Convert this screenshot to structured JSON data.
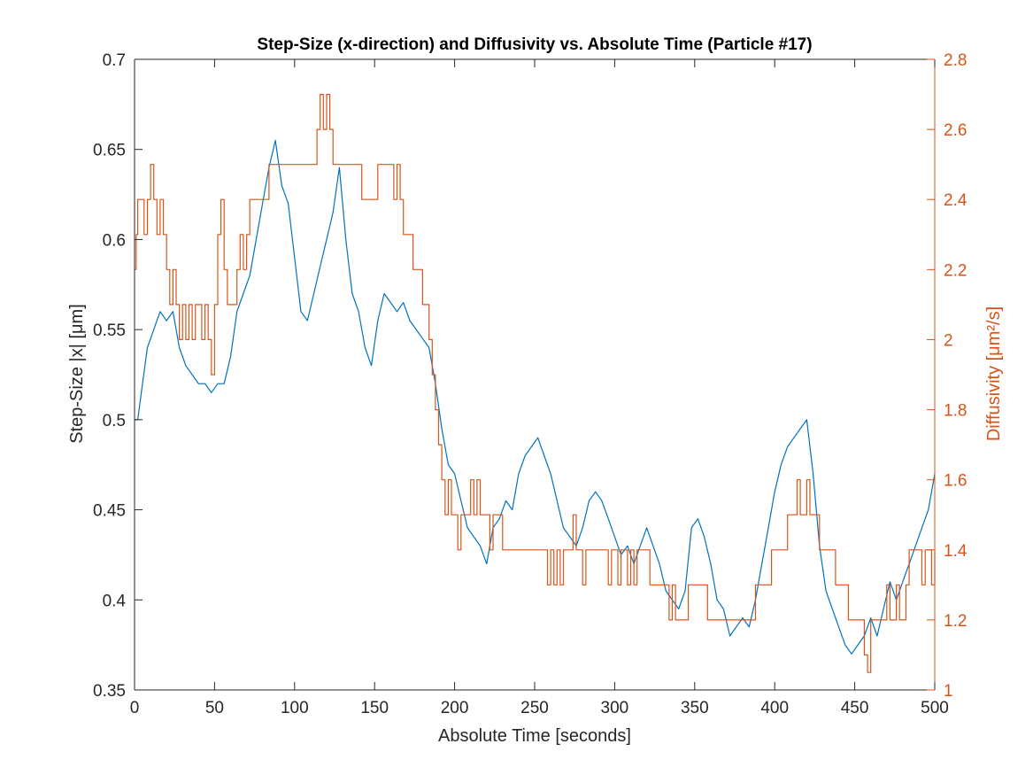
{
  "chart_data": {
    "type": "line",
    "title": "Step-Size (x-direction) and Diffusivity vs. Absolute Time (Particle #17)",
    "xlabel": "Absolute Time [seconds]",
    "xlim": [
      0,
      500
    ],
    "xticks": [
      "0",
      "50",
      "100",
      "150",
      "200",
      "250",
      "300",
      "350",
      "400",
      "450",
      "500"
    ],
    "ylabel_left": "Step-Size |x| [μm]",
    "ylim_left": [
      0.35,
      0.7
    ],
    "yticks_left": [
      "0.35",
      "0.4",
      "0.45",
      "0.5",
      "0.55",
      "0.6",
      "0.65",
      "0.7"
    ],
    "ylabel_right": "Diffusivity [μm²/s]",
    "ylim_right": [
      1,
      2.8
    ],
    "yticks_right": [
      "1",
      "1.2",
      "1.4",
      "1.6",
      "1.8",
      "2",
      "2.2",
      "2.4",
      "2.6",
      "2.8"
    ],
    "grid": false,
    "legend": "none",
    "colors": {
      "series_left": "#0072BD",
      "series_right": "#D95319",
      "axes": "#262626"
    },
    "series": [
      {
        "axis": "left",
        "x": [
          0,
          2,
          5,
          8,
          12,
          16,
          20,
          24,
          28,
          32,
          36,
          40,
          44,
          48,
          52,
          56,
          60,
          64,
          68,
          72,
          76,
          80,
          84,
          88,
          92,
          96,
          100,
          104,
          108,
          112,
          116,
          120,
          124,
          128,
          132,
          136,
          140,
          144,
          148,
          152,
          156,
          160,
          164,
          168,
          172,
          176,
          180,
          184,
          188,
          192,
          196,
          200,
          204,
          208,
          212,
          216,
          220,
          224,
          228,
          232,
          236,
          240,
          244,
          248,
          252,
          256,
          260,
          264,
          268,
          272,
          276,
          280,
          284,
          288,
          292,
          296,
          300,
          304,
          308,
          312,
          316,
          320,
          324,
          328,
          332,
          336,
          340,
          344,
          348,
          352,
          356,
          360,
          364,
          368,
          372,
          376,
          380,
          384,
          388,
          392,
          396,
          400,
          404,
          408,
          412,
          416,
          420,
          424,
          428,
          432,
          436,
          440,
          444,
          448,
          452,
          456,
          460,
          464,
          468,
          472,
          476,
          480,
          484,
          488,
          492,
          496,
          500
        ],
        "values": [
          0.5,
          0.5,
          0.52,
          0.54,
          0.55,
          0.56,
          0.555,
          0.56,
          0.54,
          0.53,
          0.525,
          0.52,
          0.52,
          0.515,
          0.52,
          0.52,
          0.535,
          0.56,
          0.57,
          0.58,
          0.6,
          0.62,
          0.64,
          0.655,
          0.63,
          0.62,
          0.59,
          0.56,
          0.555,
          0.57,
          0.585,
          0.6,
          0.615,
          0.64,
          0.6,
          0.57,
          0.56,
          0.54,
          0.53,
          0.555,
          0.57,
          0.565,
          0.56,
          0.565,
          0.555,
          0.55,
          0.545,
          0.54,
          0.52,
          0.495,
          0.475,
          0.47,
          0.455,
          0.44,
          0.435,
          0.43,
          0.42,
          0.44,
          0.445,
          0.455,
          0.45,
          0.47,
          0.48,
          0.485,
          0.49,
          0.48,
          0.47,
          0.455,
          0.44,
          0.435,
          0.43,
          0.44,
          0.455,
          0.46,
          0.455,
          0.445,
          0.435,
          0.425,
          0.43,
          0.42,
          0.43,
          0.44,
          0.43,
          0.42,
          0.405,
          0.4,
          0.395,
          0.405,
          0.44,
          0.445,
          0.435,
          0.42,
          0.4,
          0.395,
          0.38,
          0.385,
          0.39,
          0.385,
          0.4,
          0.42,
          0.44,
          0.46,
          0.475,
          0.485,
          0.49,
          0.495,
          0.5,
          0.47,
          0.43,
          0.405,
          0.395,
          0.385,
          0.375,
          0.37,
          0.375,
          0.38,
          0.39,
          0.38,
          0.395,
          0.41,
          0.4,
          0.41,
          0.42,
          0.43,
          0.44,
          0.45,
          0.47
        ]
      },
      {
        "axis": "right",
        "x": [
          0,
          1,
          2,
          4,
          6,
          8,
          10,
          12,
          14,
          16,
          18,
          20,
          22,
          24,
          26,
          28,
          30,
          32,
          34,
          36,
          38,
          40,
          42,
          44,
          46,
          48,
          50,
          52,
          54,
          56,
          58,
          60,
          62,
          64,
          66,
          68,
          70,
          72,
          74,
          76,
          78,
          80,
          82,
          84,
          86,
          88,
          90,
          92,
          94,
          96,
          98,
          100,
          102,
          104,
          106,
          108,
          110,
          112,
          114,
          116,
          118,
          120,
          122,
          124,
          126,
          128,
          130,
          132,
          134,
          136,
          138,
          140,
          142,
          144,
          146,
          148,
          150,
          152,
          154,
          156,
          158,
          160,
          162,
          164,
          166,
          168,
          170,
          172,
          174,
          176,
          178,
          180,
          182,
          184,
          186,
          188,
          190,
          192,
          194,
          196,
          198,
          200,
          202,
          204,
          206,
          208,
          210,
          212,
          214,
          216,
          218,
          220,
          222,
          224,
          226,
          228,
          230,
          232,
          234,
          236,
          238,
          240,
          242,
          244,
          246,
          248,
          250,
          252,
          254,
          256,
          258,
          260,
          262,
          264,
          266,
          268,
          270,
          272,
          274,
          276,
          278,
          280,
          282,
          284,
          286,
          288,
          290,
          292,
          294,
          296,
          298,
          300,
          302,
          304,
          306,
          308,
          310,
          312,
          314,
          316,
          318,
          320,
          322,
          324,
          326,
          328,
          330,
          332,
          334,
          336,
          338,
          340,
          342,
          344,
          346,
          348,
          350,
          352,
          354,
          356,
          358,
          360,
          362,
          364,
          366,
          368,
          370,
          372,
          374,
          376,
          378,
          380,
          382,
          384,
          386,
          388,
          390,
          392,
          394,
          396,
          398,
          400,
          402,
          404,
          406,
          408,
          410,
          412,
          414,
          416,
          418,
          420,
          422,
          424,
          426,
          428,
          430,
          432,
          434,
          436,
          438,
          440,
          442,
          444,
          446,
          448,
          450,
          452,
          454,
          456,
          458,
          460,
          462,
          464,
          466,
          468,
          470,
          472,
          474,
          476,
          478,
          480,
          482,
          484,
          486,
          488,
          490,
          492,
          494,
          496,
          498,
          500
        ],
        "values": [
          2.2,
          2.3,
          2.4,
          2.4,
          2.3,
          2.4,
          2.5,
          2.4,
          2.3,
          2.4,
          2.3,
          2.2,
          2.1,
          2.2,
          2.1,
          2.0,
          2.1,
          2.0,
          2.1,
          2.0,
          2.1,
          2.1,
          2.0,
          2.1,
          2.0,
          1.9,
          2.1,
          2.3,
          2.4,
          2.2,
          2.1,
          2.1,
          2.1,
          2.2,
          2.3,
          2.2,
          2.3,
          2.4,
          2.4,
          2.4,
          2.4,
          2.4,
          2.4,
          2.5,
          2.5,
          2.5,
          2.5,
          2.5,
          2.5,
          2.5,
          2.5,
          2.5,
          2.5,
          2.5,
          2.5,
          2.5,
          2.5,
          2.5,
          2.6,
          2.7,
          2.6,
          2.7,
          2.6,
          2.5,
          2.5,
          2.5,
          2.5,
          2.5,
          2.5,
          2.5,
          2.5,
          2.5,
          2.4,
          2.4,
          2.4,
          2.4,
          2.4,
          2.5,
          2.5,
          2.5,
          2.5,
          2.5,
          2.4,
          2.5,
          2.4,
          2.3,
          2.3,
          2.3,
          2.2,
          2.2,
          2.2,
          2.1,
          2.1,
          2.0,
          1.9,
          1.8,
          1.7,
          1.6,
          1.5,
          1.6,
          1.5,
          1.5,
          1.4,
          1.5,
          1.5,
          1.5,
          1.6,
          1.5,
          1.6,
          1.5,
          1.5,
          1.5,
          1.4,
          1.5,
          1.5,
          1.5,
          1.4,
          1.4,
          1.4,
          1.4,
          1.4,
          1.4,
          1.4,
          1.4,
          1.4,
          1.4,
          1.4,
          1.4,
          1.4,
          1.4,
          1.3,
          1.4,
          1.3,
          1.4,
          1.3,
          1.4,
          1.4,
          1.4,
          1.5,
          1.4,
          1.4,
          1.3,
          1.4,
          1.4,
          1.4,
          1.4,
          1.4,
          1.4,
          1.4,
          1.3,
          1.4,
          1.4,
          1.3,
          1.4,
          1.4,
          1.3,
          1.4,
          1.3,
          1.4,
          1.4,
          1.4,
          1.4,
          1.3,
          1.3,
          1.3,
          1.3,
          1.3,
          1.3,
          1.2,
          1.3,
          1.2,
          1.2,
          1.2,
          1.2,
          1.3,
          1.3,
          1.3,
          1.3,
          1.3,
          1.3,
          1.2,
          1.2,
          1.2,
          1.2,
          1.2,
          1.2,
          1.2,
          1.2,
          1.2,
          1.2,
          1.2,
          1.2,
          1.2,
          1.2,
          1.2,
          1.3,
          1.3,
          1.3,
          1.3,
          1.3,
          1.4,
          1.4,
          1.4,
          1.4,
          1.4,
          1.5,
          1.5,
          1.5,
          1.6,
          1.5,
          1.5,
          1.6,
          1.5,
          1.5,
          1.5,
          1.4,
          1.4,
          1.4,
          1.4,
          1.4,
          1.3,
          1.3,
          1.3,
          1.3,
          1.2,
          1.2,
          1.2,
          1.2,
          1.2,
          1.1,
          1.05,
          1.2,
          1.2,
          1.2,
          1.2,
          1.2,
          1.3,
          1.2,
          1.2,
          1.3,
          1.2,
          1.2,
          1.3,
          1.4,
          1.4,
          1.4,
          1.4,
          1.3,
          1.4,
          1.4,
          1.3,
          1.4
        ]
      }
    ]
  }
}
